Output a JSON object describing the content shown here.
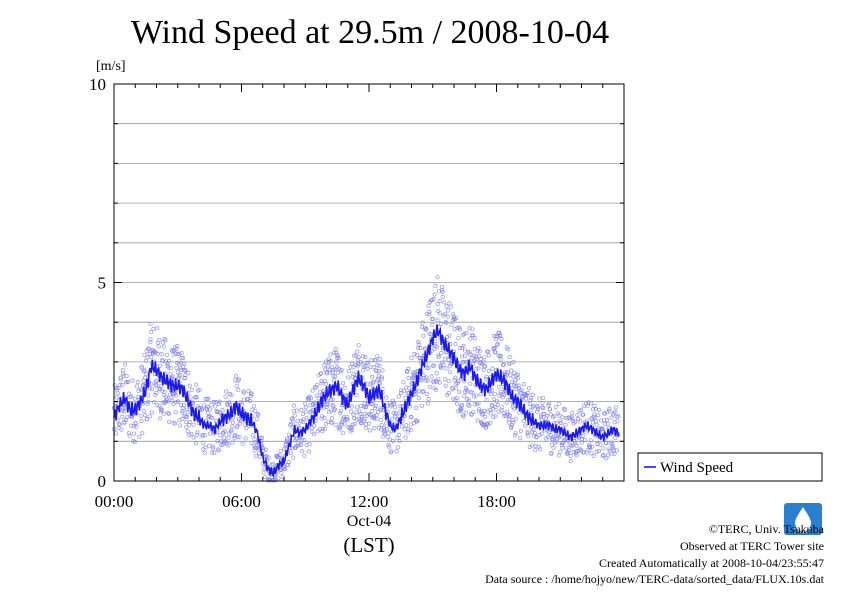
{
  "page": {
    "title": "Wind Speed at 29.5m / 2008-10-04",
    "copyright": "©TERC, Univ. Tsukuba",
    "observed": "Observed at TERC Tower site",
    "created": "Created Automatically at 2008-10-04/23:55:47",
    "source": "Data source : /home/hojyo/new/TERC-data/sorted_data/FLUX.10s.dat",
    "logo_text": "TERC"
  },
  "colors": {
    "series": "#1a1aee",
    "scatter": "#7b7bf0",
    "grid": "#999999"
  },
  "chart_data": {
    "type": "line",
    "title": "Wind Speed at 29.5m / 2008-10-04",
    "ylabel": "[m/s]",
    "xlabel": "(LST)",
    "date_label": "Oct-04",
    "ylim": [
      0,
      10
    ],
    "xlim": [
      0,
      24
    ],
    "yticks": [
      0,
      5,
      10
    ],
    "xticks": [
      {
        "x": 0,
        "label": "00:00"
      },
      {
        "x": 6,
        "label": "06:00"
      },
      {
        "x": 12,
        "label": "12:00"
      },
      {
        "x": 18,
        "label": "18:00"
      }
    ],
    "grid": true,
    "legend": {
      "position": "right",
      "entries": [
        "Wind Speed"
      ]
    },
    "series": [
      {
        "name": "Wind Speed",
        "x": [
          0,
          0.25,
          0.5,
          0.75,
          1,
          1.25,
          1.5,
          1.75,
          2,
          2.25,
          2.5,
          2.75,
          3,
          3.25,
          3.5,
          3.75,
          4,
          4.25,
          4.5,
          4.75,
          5,
          5.25,
          5.5,
          5.75,
          6,
          6.25,
          6.5,
          6.75,
          7,
          7.25,
          7.5,
          7.75,
          8,
          8.25,
          8.5,
          8.75,
          9,
          9.25,
          9.5,
          9.75,
          10,
          10.25,
          10.5,
          10.75,
          11,
          11.25,
          11.5,
          11.75,
          12,
          12.25,
          12.5,
          12.75,
          13,
          13.25,
          13.5,
          13.75,
          14,
          14.25,
          14.5,
          14.75,
          15,
          15.25,
          15.5,
          15.75,
          16,
          16.25,
          16.5,
          16.75,
          17,
          17.25,
          17.5,
          17.75,
          18,
          18.25,
          18.5,
          18.75,
          19,
          19.25,
          19.5,
          19.75,
          20,
          20.25,
          20.5,
          20.75,
          21,
          21.25,
          21.5,
          21.75,
          22,
          22.25,
          22.5,
          22.75,
          23,
          23.25,
          23.5,
          23.75
        ],
        "values": [
          1.6,
          1.9,
          2.1,
          1.8,
          1.8,
          2.0,
          2.3,
          2.9,
          2.8,
          2.6,
          2.5,
          2.4,
          2.4,
          2.3,
          2.0,
          1.7,
          1.6,
          1.4,
          1.4,
          1.3,
          1.5,
          1.6,
          1.7,
          1.9,
          1.7,
          1.6,
          1.5,
          1.2,
          0.6,
          0.3,
          0.2,
          0.4,
          0.5,
          0.9,
          1.3,
          1.2,
          1.3,
          1.5,
          1.7,
          2.0,
          2.2,
          2.3,
          2.4,
          2.1,
          1.9,
          2.3,
          2.6,
          2.4,
          2.1,
          2.2,
          2.3,
          1.8,
          1.4,
          1.3,
          1.6,
          1.9,
          2.2,
          2.5,
          2.9,
          3.2,
          3.6,
          3.8,
          3.5,
          3.3,
          3.1,
          2.8,
          2.7,
          2.9,
          2.6,
          2.4,
          2.3,
          2.5,
          2.7,
          2.6,
          2.4,
          2.1,
          2.0,
          1.8,
          1.6,
          1.5,
          1.4,
          1.4,
          1.4,
          1.3,
          1.3,
          1.2,
          1.1,
          1.2,
          1.3,
          1.4,
          1.3,
          1.2,
          1.1,
          1.2,
          1.3,
          1.2
        ]
      }
    ]
  }
}
